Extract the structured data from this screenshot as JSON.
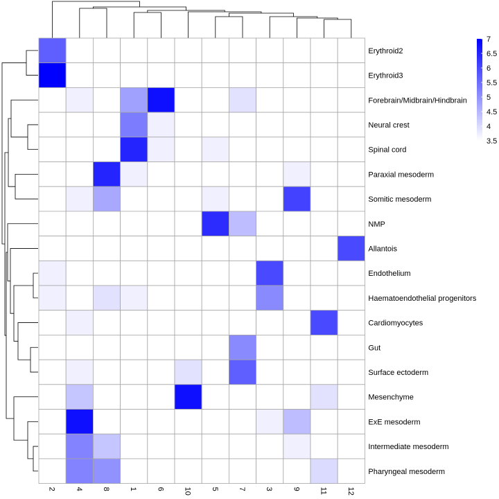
{
  "chart_data": {
    "type": "heatmap",
    "title": "",
    "columns": [
      "2",
      "4",
      "8",
      "1",
      "6",
      "10",
      "5",
      "7",
      "3",
      "9",
      "11",
      "12"
    ],
    "rows": [
      "Erythroid2",
      "Erythroid3",
      "Forebrain/Midbrain/Hindbrain",
      "Neural crest",
      "Spinal cord",
      "Paraxial mesoderm",
      "Somitic mesoderm",
      "NMP",
      "Allantois",
      "Endothelium",
      "Haematoendothelial progenitors",
      "Cardiomyocytes",
      "Gut",
      "Surface ectoderm",
      "Mesenchyme",
      "ExE mesoderm",
      "Intermediate mesoderm",
      "Pharyngeal mesoderm"
    ],
    "values": [
      [
        5.7,
        3.5,
        3.5,
        3.5,
        3.5,
        3.5,
        3.5,
        3.5,
        3.5,
        3.5,
        3.5,
        3.5
      ],
      [
        7.0,
        3.5,
        3.5,
        3.5,
        3.5,
        3.5,
        3.5,
        3.5,
        3.5,
        3.5,
        3.5,
        3.5
      ],
      [
        3.5,
        3.7,
        3.5,
        4.8,
        6.8,
        3.5,
        3.5,
        3.9,
        3.5,
        3.5,
        3.5,
        3.5
      ],
      [
        3.5,
        3.5,
        3.5,
        5.3,
        3.7,
        3.5,
        3.5,
        3.5,
        3.5,
        3.5,
        3.5,
        3.5
      ],
      [
        3.5,
        3.5,
        3.5,
        6.5,
        3.7,
        3.5,
        3.7,
        3.5,
        3.5,
        3.5,
        3.5,
        3.5
      ],
      [
        3.5,
        3.5,
        6.5,
        3.7,
        3.5,
        3.5,
        3.5,
        3.5,
        3.5,
        3.7,
        3.5,
        3.5
      ],
      [
        3.5,
        3.7,
        4.7,
        3.5,
        3.5,
        3.5,
        3.7,
        3.5,
        3.5,
        6.1,
        3.5,
        3.5
      ],
      [
        3.5,
        3.5,
        3.5,
        3.5,
        3.5,
        3.5,
        6.4,
        4.4,
        3.5,
        3.5,
        3.5,
        3.5
      ],
      [
        3.5,
        3.5,
        3.5,
        3.5,
        3.5,
        3.5,
        3.5,
        3.5,
        3.5,
        3.5,
        3.5,
        6.0
      ],
      [
        3.7,
        3.5,
        3.5,
        3.5,
        3.5,
        3.5,
        3.5,
        3.5,
        6.0,
        3.5,
        3.5,
        3.5
      ],
      [
        3.7,
        3.5,
        3.9,
        3.7,
        3.5,
        3.5,
        3.5,
        3.5,
        5.1,
        3.5,
        3.5,
        3.5
      ],
      [
        3.5,
        3.7,
        3.5,
        3.5,
        3.5,
        3.5,
        3.5,
        3.5,
        3.5,
        3.5,
        6.0,
        3.5
      ],
      [
        3.5,
        3.5,
        3.5,
        3.5,
        3.5,
        3.5,
        3.5,
        5.1,
        3.5,
        3.5,
        3.5,
        3.5
      ],
      [
        3.5,
        3.7,
        3.5,
        3.5,
        3.5,
        3.9,
        3.5,
        5.7,
        3.5,
        3.5,
        3.5,
        3.5
      ],
      [
        3.5,
        4.3,
        3.5,
        3.5,
        3.5,
        6.8,
        3.5,
        3.5,
        3.5,
        3.5,
        3.9,
        3.5
      ],
      [
        3.5,
        6.8,
        3.5,
        3.5,
        3.5,
        3.5,
        3.5,
        3.5,
        3.7,
        4.4,
        3.5,
        3.5
      ],
      [
        3.5,
        5.2,
        4.3,
        3.5,
        3.5,
        3.5,
        3.5,
        3.5,
        3.5,
        3.7,
        3.5,
        3.5
      ],
      [
        3.5,
        5.2,
        5.0,
        3.5,
        3.5,
        3.5,
        3.5,
        3.5,
        3.5,
        3.5,
        4.0,
        3.5
      ]
    ],
    "colorscale": {
      "min": 3.5,
      "max": 7,
      "low_color": "#ffffff",
      "high_color": "#0000ff"
    },
    "legend": {
      "placement": "top-right",
      "ticks": [
        "7",
        "6.5",
        "6",
        "5.5",
        "5",
        "4.5",
        "4",
        "3.5"
      ]
    },
    "grid": true,
    "dendrograms": {
      "columns": "top",
      "rows": "left"
    }
  }
}
